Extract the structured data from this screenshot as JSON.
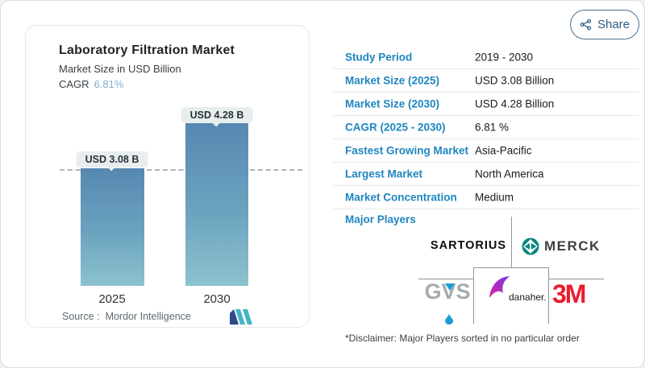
{
  "share": {
    "label": "Share"
  },
  "chart_card": {
    "title": "Laboratory Filtration Market",
    "subtitle": "Market Size in USD Billion",
    "cagr_label": "CAGR",
    "cagr_value": "6.81%",
    "source_label": "Source :",
    "source_value": "Mordor Intelligence"
  },
  "chart_data": {
    "type": "bar",
    "categories": [
      "2025",
      "2030"
    ],
    "values": [
      3.08,
      4.28
    ],
    "value_labels": [
      "USD 3.08 B",
      "USD 4.28 B"
    ],
    "title": "Laboratory Filtration Market",
    "ylabel": "Market Size in USD Billion",
    "cagr": "6.81%",
    "ylim": [
      0,
      4.5
    ],
    "grid": false,
    "legend": false,
    "reference_line": {
      "y": 3.08,
      "style": "dashed"
    },
    "bar_gradient_top": "#5688b1",
    "bar_gradient_bottom": "#8cc3ce"
  },
  "table": {
    "rows": [
      {
        "label": "Study Period",
        "value": "2019 - 2030"
      },
      {
        "label": "Market Size (2025)",
        "value": "USD 3.08 Billion"
      },
      {
        "label": "Market Size (2030)",
        "value": "USD 4.28 Billion"
      },
      {
        "label": "CAGR (2025 - 2030)",
        "value": "6.81 %"
      },
      {
        "label": "Fastest Growing Market",
        "value": "Asia-Pacific"
      },
      {
        "label": "Largest Market",
        "value": "North America"
      },
      {
        "label": "Market Concentration",
        "value": "Medium"
      }
    ]
  },
  "major_players": {
    "label": "Major Players",
    "players": [
      {
        "name": "Sartorius",
        "wordmark": "SARTORIUS"
      },
      {
        "name": "Merck",
        "wordmark": "MERCK"
      },
      {
        "name": "GVS",
        "wordmark": "GVS"
      },
      {
        "name": "Danaher",
        "wordmark": "danaher."
      },
      {
        "name": "3M",
        "wordmark": "3M"
      }
    ]
  },
  "disclaimer": "*Disclaimer: Major Players sorted in no particular order",
  "colors": {
    "label_blue": "#1f86c0",
    "cagr_value_blue": "#85accd",
    "share_blue": "#2b5d84",
    "bar_top": "#5688b1",
    "bar_bottom": "#8cc3ce",
    "merck_teal": "#00857c",
    "gvs_gray": "#a6abaf",
    "gvs_blue": "#1e9cd7",
    "threeM_red": "#ec1c2d",
    "danaher_purple": "#7c3aed",
    "danaher_magenta": "#d6219c",
    "mordor_navy": "#2e4b8c",
    "mordor_teal": "#45b5c6"
  }
}
